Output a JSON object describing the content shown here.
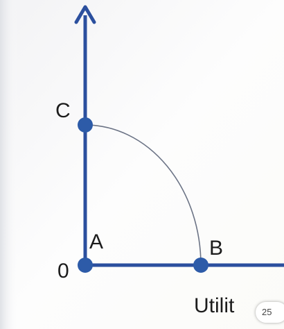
{
  "diagram": {
    "labels": {
      "origin": "0",
      "point_c": "C",
      "point_a": "A",
      "point_b": "B",
      "x_axis": "Utilit"
    },
    "page_badge": "25",
    "colors": {
      "axis": "#2b4f9e",
      "point": "#2d5ba8",
      "curve": "#6b7385",
      "background": "#fdfdfd"
    }
  }
}
